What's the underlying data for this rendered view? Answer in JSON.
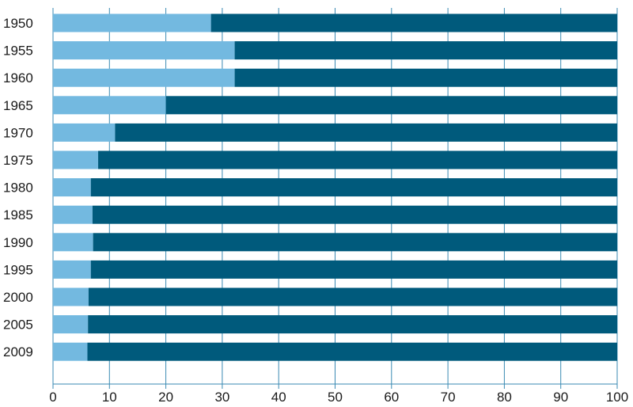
{
  "chart_data": {
    "type": "bar",
    "orientation": "horizontal",
    "stacked": true,
    "categories": [
      "1950",
      "1955",
      "1960",
      "1965",
      "1970",
      "1975",
      "1980",
      "1985",
      "1990",
      "1995",
      "2000",
      "2005",
      "2009"
    ],
    "series": [
      {
        "values": [
          28,
          32.2,
          32.2,
          20,
          11,
          8,
          6.7,
          7,
          7.1,
          6.7,
          6.3,
          6.2,
          6.1
        ],
        "color": "#73b9e0"
      },
      {
        "values": [
          72,
          67.8,
          67.8,
          80,
          89,
          92,
          93.3,
          93,
          92.9,
          93.3,
          93.7,
          93.8,
          93.9
        ],
        "color": "#005a7c"
      }
    ],
    "xlim": [
      0,
      100
    ],
    "xticks": [
      "0",
      "10",
      "20",
      "30",
      "40",
      "50",
      "60",
      "70",
      "80",
      "90",
      "100"
    ],
    "grid": "vertical",
    "gridColor": "#3a8ab3",
    "legend": "none"
  }
}
